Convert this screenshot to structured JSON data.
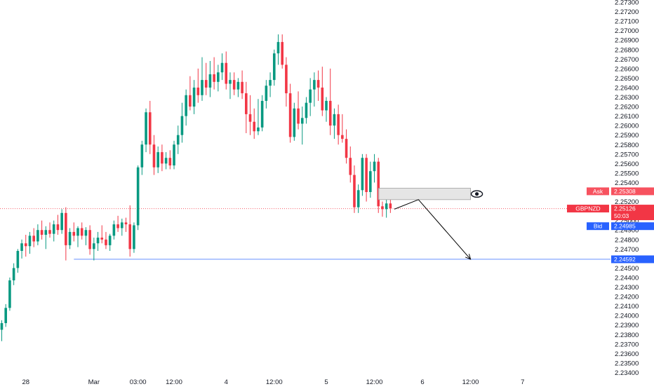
{
  "chart_data": {
    "type": "candlestick",
    "symbol": "GBPNZD",
    "colors": {
      "up": "#089981",
      "down": "#f23645",
      "ask_tag": "#f7525f",
      "bid_tag": "#2962ff",
      "level_line": "#2962ff",
      "current_line": "#f23645",
      "zone_fill": "#e0e0e0",
      "zone_border": "#9e9e9e",
      "arrow": "#000000"
    },
    "y_axis": {
      "ylim": [
        2.234,
        2.273
      ],
      "ticks": [
        "2.27300",
        "2.27200",
        "2.27100",
        "2.27000",
        "2.26900",
        "2.26800",
        "2.26700",
        "2.26600",
        "2.26500",
        "2.26400",
        "2.26300",
        "2.26200",
        "2.26100",
        "2.26000",
        "2.25900",
        "2.25800",
        "2.25700",
        "2.25600",
        "2.25500",
        "2.25400",
        "2.25300",
        "2.25200",
        "2.25100",
        "2.25000",
        "2.24900",
        "2.24800",
        "2.24700",
        "2.24600",
        "2.24500",
        "2.24400",
        "2.24300",
        "2.24200",
        "2.24100",
        "2.24000",
        "2.23900",
        "2.23800",
        "2.23700",
        "2.23600",
        "2.23500",
        "2.23400"
      ]
    },
    "x_axis": {
      "ticks": [
        {
          "label": "28",
          "bar": 6
        },
        {
          "label": "Mar",
          "bar": 23
        },
        {
          "label": "03:00",
          "bar": 34
        },
        {
          "label": "12:00",
          "bar": 43
        },
        {
          "label": "4",
          "bar": 56
        },
        {
          "label": "12:00",
          "bar": 68
        },
        {
          "label": "5",
          "bar": 81
        },
        {
          "label": "12:00",
          "bar": 93
        },
        {
          "label": "6",
          "bar": 105
        },
        {
          "label": "12:00",
          "bar": 117
        },
        {
          "label": "7",
          "bar": 130
        }
      ]
    },
    "candles": [
      [
        2.2385,
        2.2395,
        2.2373,
        2.2392
      ],
      [
        2.2392,
        2.2412,
        2.2388,
        2.2408
      ],
      [
        2.2408,
        2.244,
        2.2405,
        2.2437
      ],
      [
        2.2437,
        2.2455,
        2.2432,
        2.245
      ],
      [
        2.245,
        2.247,
        2.2445,
        2.2468
      ],
      [
        2.2468,
        2.248,
        2.246,
        2.2476
      ],
      [
        2.2476,
        2.2485,
        2.2462,
        2.2473
      ],
      [
        2.2473,
        2.2488,
        2.2465,
        2.2484
      ],
      [
        2.2484,
        2.2492,
        2.2472,
        2.2478
      ],
      [
        2.2478,
        2.2496,
        2.2474,
        2.249
      ],
      [
        2.249,
        2.25,
        2.248,
        2.2485
      ],
      [
        2.2485,
        2.2494,
        2.247,
        2.249
      ],
      [
        2.249,
        2.2498,
        2.2482,
        2.2486
      ],
      [
        2.2486,
        2.25,
        2.2478,
        2.2496
      ],
      [
        2.2496,
        2.2506,
        2.2485,
        2.249
      ],
      [
        2.249,
        2.2512,
        2.2486,
        2.2508
      ],
      [
        2.2508,
        2.2514,
        2.2458,
        2.2474
      ],
      [
        2.2474,
        2.2492,
        2.247,
        2.2488
      ],
      [
        2.2488,
        2.2498,
        2.2478,
        2.2484
      ],
      [
        2.2484,
        2.2494,
        2.2472,
        2.2492
      ],
      [
        2.2492,
        2.2498,
        2.248,
        2.2484
      ],
      [
        2.2484,
        2.2493,
        2.2474,
        2.249
      ],
      [
        2.249,
        2.2495,
        2.2464,
        2.247
      ],
      [
        2.247,
        2.2482,
        2.2458,
        2.2476
      ],
      [
        2.2476,
        2.2488,
        2.2468,
        2.2482
      ],
      [
        2.2482,
        2.2495,
        2.2476,
        2.248
      ],
      [
        2.248,
        2.2488,
        2.247,
        2.2474
      ],
      [
        2.2474,
        2.2486,
        2.2468,
        2.2484
      ],
      [
        2.2484,
        2.25,
        2.248,
        2.2496
      ],
      [
        2.2496,
        2.2505,
        2.2488,
        2.2492
      ],
      [
        2.2492,
        2.2502,
        2.2484,
        2.2498
      ],
      [
        2.2498,
        2.2503,
        2.2488,
        2.2496
      ],
      [
        2.2496,
        2.2516,
        2.2462,
        2.247
      ],
      [
        2.247,
        2.2498,
        2.2466,
        2.2495
      ],
      [
        2.2495,
        2.2558,
        2.249,
        2.2556
      ],
      [
        2.2556,
        2.2584,
        2.2548,
        2.258
      ],
      [
        2.258,
        2.2618,
        2.2572,
        2.2614
      ],
      [
        2.2614,
        2.2626,
        2.257,
        2.258
      ],
      [
        2.258,
        2.259,
        2.2548,
        2.2556
      ],
      [
        2.2556,
        2.2578,
        2.255,
        2.2572
      ],
      [
        2.2572,
        2.258,
        2.2552,
        2.256
      ],
      [
        2.256,
        2.2572,
        2.2554,
        2.2566
      ],
      [
        2.2566,
        2.2574,
        2.2554,
        2.2558
      ],
      [
        2.2558,
        2.2584,
        2.2554,
        2.258
      ],
      [
        2.258,
        2.26,
        2.257,
        2.259
      ],
      [
        2.259,
        2.2624,
        2.2582,
        2.261
      ],
      [
        2.261,
        2.2638,
        2.26,
        2.2632
      ],
      [
        2.2632,
        2.2652,
        2.2616,
        2.262
      ],
      [
        2.262,
        2.2648,
        2.2612,
        2.264
      ],
      [
        2.264,
        2.266,
        2.2624,
        2.2632
      ],
      [
        2.2632,
        2.2672,
        2.2626,
        2.2648
      ],
      [
        2.2648,
        2.2666,
        2.2632,
        2.264
      ],
      [
        2.264,
        2.2668,
        2.263,
        2.2654
      ],
      [
        2.2654,
        2.2672,
        2.2638,
        2.2646
      ],
      [
        2.2646,
        2.2664,
        2.2636,
        2.2656
      ],
      [
        2.2656,
        2.2676,
        2.2648,
        2.2666
      ],
      [
        2.2666,
        2.2678,
        2.2638,
        2.2644
      ],
      [
        2.2644,
        2.2656,
        2.2628,
        2.2648
      ],
      [
        2.2648,
        2.2656,
        2.2632,
        2.2638
      ],
      [
        2.2638,
        2.265,
        2.263,
        2.2646
      ],
      [
        2.2646,
        2.2658,
        2.2628,
        2.2634
      ],
      [
        2.2634,
        2.2646,
        2.2592,
        2.2612
      ],
      [
        2.2612,
        2.2632,
        2.259,
        2.2604
      ],
      [
        2.2604,
        2.2618,
        2.2586,
        2.2594
      ],
      [
        2.2594,
        2.2628,
        2.259,
        2.2598
      ],
      [
        2.2598,
        2.2632,
        2.2594,
        2.2626
      ],
      [
        2.2626,
        2.2648,
        2.2618,
        2.2642
      ],
      [
        2.2642,
        2.2656,
        2.263,
        2.2648
      ],
      [
        2.2648,
        2.268,
        2.2642,
        2.2676
      ],
      [
        2.2676,
        2.2696,
        2.2664,
        2.2688
      ],
      [
        2.2688,
        2.2696,
        2.266,
        2.2664
      ],
      [
        2.2664,
        2.2672,
        2.262,
        2.2634
      ],
      [
        2.2634,
        2.2644,
        2.2582,
        2.2588
      ],
      [
        2.2588,
        2.2624,
        2.2584,
        2.2618
      ],
      [
        2.2618,
        2.2636,
        2.2596,
        2.2602
      ],
      [
        2.2602,
        2.262,
        2.258,
        2.2608
      ],
      [
        2.2608,
        2.263,
        2.2602,
        2.2624
      ],
      [
        2.2624,
        2.265,
        2.261,
        2.2638
      ],
      [
        2.2638,
        2.2656,
        2.262,
        2.2648
      ],
      [
        2.2648,
        2.2658,
        2.2626,
        2.264
      ],
      [
        2.264,
        2.2662,
        2.261,
        2.2616
      ],
      [
        2.2616,
        2.263,
        2.2604,
        2.2626
      ],
      [
        2.2626,
        2.266,
        2.259,
        2.26
      ],
      [
        2.26,
        2.2618,
        2.2586,
        2.2612
      ],
      [
        2.2612,
        2.2622,
        2.258,
        2.259
      ],
      [
        2.259,
        2.2612,
        2.2582,
        2.2586
      ],
      [
        2.2586,
        2.2596,
        2.256,
        2.2566
      ],
      [
        2.2566,
        2.2578,
        2.254,
        2.2548
      ],
      [
        2.2548,
        2.2558,
        2.2508,
        2.2514
      ],
      [
        2.2514,
        2.2538,
        2.2508,
        2.2532
      ],
      [
        2.2532,
        2.257,
        2.2526,
        2.2566
      ],
      [
        2.2566,
        2.257,
        2.252,
        2.253
      ],
      [
        2.253,
        2.2562,
        2.2524,
        2.2552
      ],
      [
        2.2552,
        2.257,
        2.254,
        2.2562
      ],
      [
        2.2562,
        2.2566,
        2.2508,
        2.2515
      ],
      [
        2.2515,
        2.252,
        2.2504,
        2.2512
      ],
      [
        2.2512,
        2.2522,
        2.2503,
        2.2518
      ],
      [
        2.2518,
        2.2522,
        2.2508,
        2.2513
      ]
    ],
    "annotations": {
      "current_price_line": 2.25126,
      "support_level": 2.24592,
      "zone": {
        "top": 2.2534,
        "bottom": 2.2522,
        "from_bar": 94,
        "to_bar": 117
      },
      "arrow_path": [
        {
          "bar": 98,
          "price": 2.2512
        },
        {
          "bar": 104,
          "price": 2.2522
        },
        {
          "bar": 117,
          "price": 2.24592
        }
      ],
      "label_icon": "eye-icon"
    },
    "price_tags": {
      "ask": {
        "label": "Ask",
        "value": "2.25308",
        "price": 2.25308
      },
      "symbol": {
        "label": "GBPNZD",
        "value": "2.25126",
        "countdown": "50:03",
        "price": 2.25126
      },
      "bid": {
        "label": "Bid",
        "value": "2.24985",
        "price": 2.24985
      },
      "level": {
        "value": "2.24592",
        "price": 2.24592
      }
    }
  }
}
